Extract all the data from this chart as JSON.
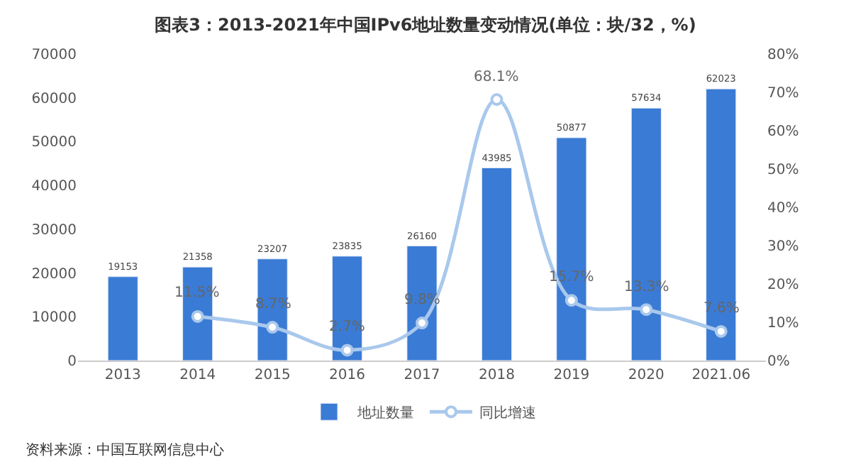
{
  "chart_data": {
    "type": "bar",
    "title": "图表3：2013-2021年中国IPv6地址数量变动情况(单位：块/32，%)",
    "categories": [
      "2013",
      "2014",
      "2015",
      "2016",
      "2017",
      "2018",
      "2019",
      "2020",
      "2021.06"
    ],
    "series": [
      {
        "name": "地址数量",
        "color": "#3a7bd5",
        "values": [
          19153,
          21358,
          23207,
          23835,
          26160,
          43985,
          50877,
          57634,
          62023
        ],
        "value_labels": [
          "19153",
          "21358",
          "23207",
          "23835",
          "26160",
          "43985",
          "50877",
          "57634",
          "62023"
        ]
      },
      {
        "name": "同比增速",
        "type": "line",
        "axis": "y2",
        "color": "#a9c8ec",
        "values": [
          null,
          11.5,
          8.7,
          2.7,
          9.8,
          68.1,
          15.7,
          13.3,
          7.6
        ],
        "value_labels": [
          null,
          "11.5%",
          "8.7%",
          "2.7%",
          "9.8%",
          "68.1%",
          "15.7%",
          "13.3%",
          "7.6%"
        ]
      }
    ],
    "ylim": [
      0,
      70000
    ],
    "yticks": [
      0,
      10000,
      20000,
      30000,
      40000,
      50000,
      60000,
      70000
    ],
    "y2lim": [
      0,
      80
    ],
    "y2ticks": [
      {
        "value": 0,
        "label": "0%"
      },
      {
        "value": 10,
        "label": "10%"
      },
      {
        "value": 20,
        "label": "20%"
      },
      {
        "value": 30,
        "label": "30%"
      },
      {
        "value": 40,
        "label": "40%"
      },
      {
        "value": 50,
        "label": "50%"
      },
      {
        "value": 60,
        "label": "60%"
      },
      {
        "value": 70,
        "label": "70%"
      },
      {
        "value": 80,
        "label": "80%"
      }
    ],
    "marker": "circle",
    "line_style": "solid",
    "legend": "bottom",
    "annotations": [
      "资料来源：中国互联网信息中心"
    ]
  }
}
